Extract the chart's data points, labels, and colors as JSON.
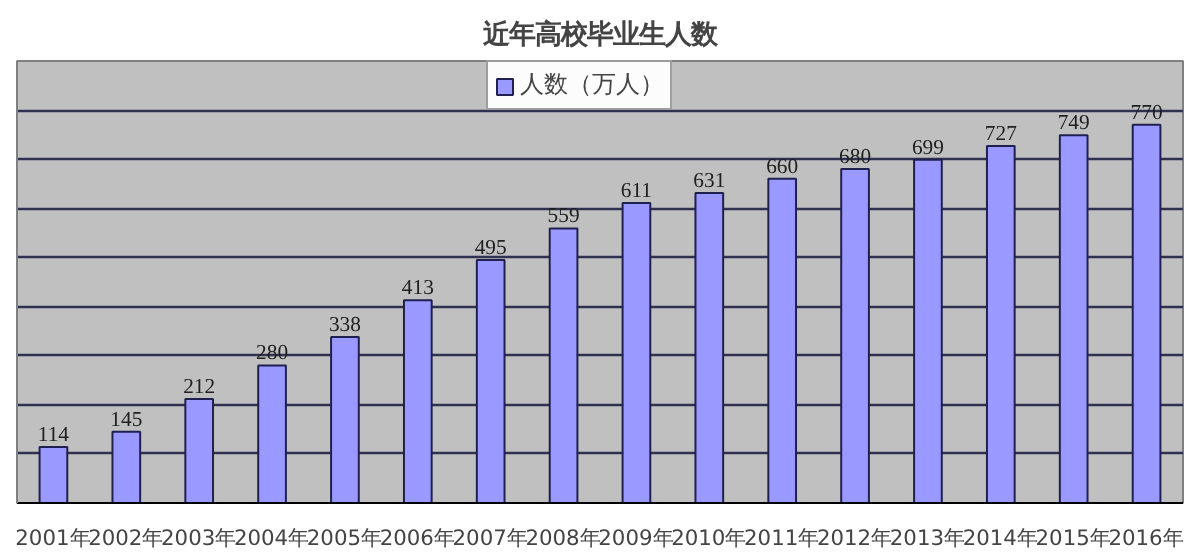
{
  "chart_data": {
    "type": "bar",
    "title": "近年高校毕业生人数",
    "categories": [
      "2001年",
      "2002年",
      "2003年",
      "2004年",
      "2005年",
      "2006年",
      "2007年",
      "2008年",
      "2009年",
      "2010年",
      "2011年",
      "2012年",
      "2013年",
      "2014年",
      "2015年",
      "2016年"
    ],
    "series": [
      {
        "name": "人数（万人）",
        "color": "#9999ff",
        "values": [
          114,
          145,
          212,
          280,
          338,
          413,
          495,
          559,
          611,
          631,
          660,
          680,
          699,
          727,
          749,
          770
        ]
      }
    ],
    "ylim": [
      0,
      900
    ],
    "yticks": [
      {
        "value": 0,
        "label": null
      },
      {
        "value": 100,
        "label": null
      },
      {
        "value": 200,
        "label": null
      },
      {
        "value": 300,
        "label": null
      },
      {
        "value": 400,
        "label": null
      },
      {
        "value": 500,
        "label": null
      },
      {
        "value": 600,
        "label": null
      },
      {
        "value": 700,
        "label": null
      },
      {
        "value": 800,
        "label": null
      },
      {
        "value": 900,
        "label": null
      }
    ],
    "tick_labels": "x",
    "grid": "y",
    "legend": "top",
    "data_labels": true
  }
}
